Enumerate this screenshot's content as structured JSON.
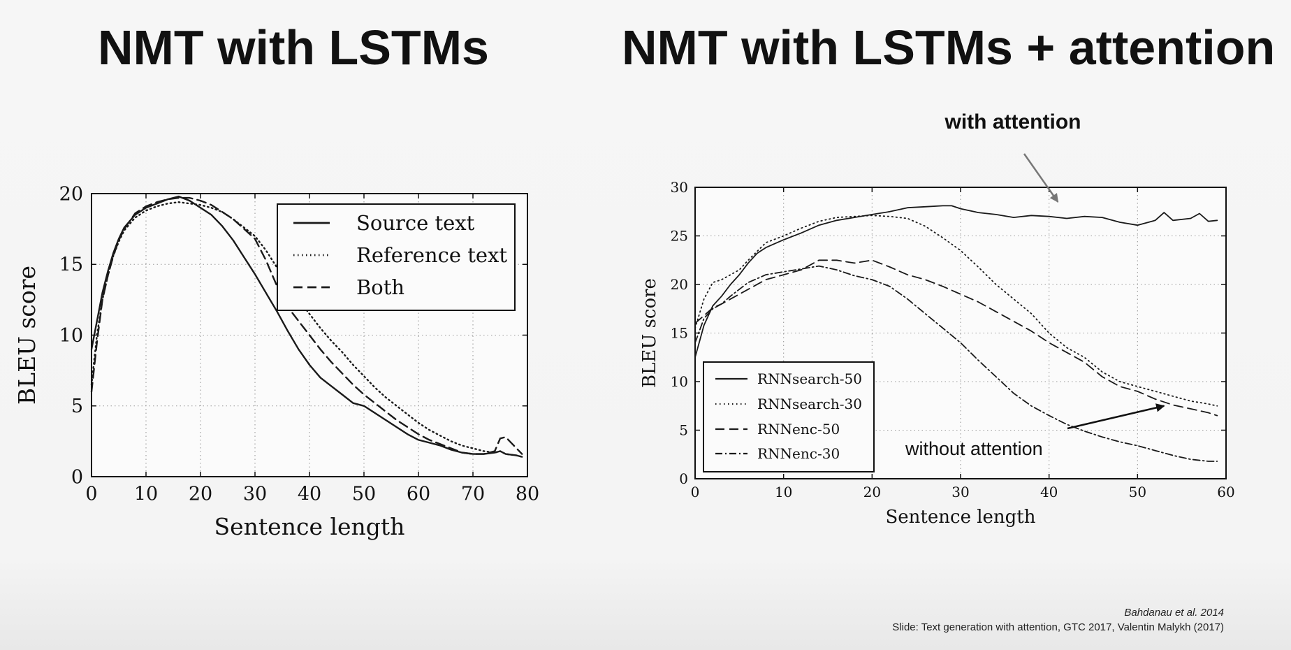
{
  "slide": {
    "title_left": "NMT with LSTMs",
    "title_right": "NMT with LSTMs + attention",
    "citation_author": "Bahdanau et al. 2014",
    "citation_slide": "Slide: Text generation with attention, GTC 2017, Valentin Malykh (2017)"
  },
  "chart_data": [
    {
      "type": "line",
      "xlabel": "Sentence length",
      "ylabel": "BLEU score",
      "xlim": [
        0,
        80
      ],
      "ylim": [
        0,
        20
      ],
      "xticks": [
        0,
        10,
        20,
        30,
        40,
        50,
        60,
        70,
        80
      ],
      "yticks": [
        0,
        5,
        10,
        15,
        20
      ],
      "grid": true,
      "legend_position": "top-right",
      "series": [
        {
          "name": "Source text",
          "style": "solid",
          "color": "#1a1a1a",
          "x": [
            0,
            1,
            2,
            3,
            4,
            5,
            6,
            8,
            10,
            12,
            14,
            16,
            18,
            20,
            22,
            24,
            26,
            28,
            30,
            32,
            34,
            36,
            38,
            40,
            42,
            44,
            46,
            48,
            50,
            52,
            54,
            56,
            58,
            60,
            62,
            64,
            66,
            68,
            70,
            72,
            74,
            75,
            76,
            78,
            79
          ],
          "y": [
            9,
            11,
            13,
            14.5,
            15.8,
            16.8,
            17.6,
            18.5,
            19.0,
            19.3,
            19.6,
            19.8,
            19.5,
            19.0,
            18.5,
            17.7,
            16.7,
            15.5,
            14.3,
            13.0,
            11.7,
            10.3,
            9.0,
            7.9,
            7.0,
            6.4,
            5.8,
            5.2,
            5.0,
            4.5,
            4.0,
            3.5,
            3.0,
            2.6,
            2.4,
            2.2,
            1.9,
            1.7,
            1.6,
            1.6,
            1.7,
            1.8,
            1.6,
            1.5,
            1.4
          ]
        },
        {
          "name": "Reference text",
          "style": "dotted",
          "color": "#1a1a1a",
          "x": [
            0,
            1,
            2,
            3,
            4,
            5,
            6,
            8,
            10,
            12,
            14,
            16,
            18,
            20,
            22,
            24,
            26,
            28,
            30,
            32,
            34,
            36,
            38,
            40,
            42,
            44,
            46,
            48,
            50,
            52,
            54,
            56,
            58,
            60,
            62,
            64,
            66,
            68,
            70,
            72,
            74,
            75,
            76,
            78,
            79
          ],
          "y": [
            6.5,
            10,
            12.5,
            14.2,
            15.6,
            16.6,
            17.4,
            18.3,
            18.8,
            19.1,
            19.3,
            19.4,
            19.3,
            19.2,
            19.0,
            18.7,
            18.2,
            17.6,
            17.0,
            16.0,
            14.8,
            13.6,
            12.5,
            11.5,
            10.5,
            9.6,
            8.8,
            7.9,
            7.1,
            6.3,
            5.6,
            5.0,
            4.4,
            3.8,
            3.3,
            2.9,
            2.5,
            2.2,
            2.0,
            1.8,
            1.7,
            1.8,
            1.6,
            1.5,
            1.4
          ]
        },
        {
          "name": "Both",
          "style": "dashed",
          "color": "#1a1a1a",
          "x": [
            0,
            1,
            2,
            3,
            4,
            5,
            6,
            8,
            10,
            12,
            14,
            16,
            18,
            20,
            22,
            24,
            26,
            28,
            30,
            32,
            34,
            36,
            38,
            40,
            42,
            44,
            46,
            48,
            50,
            52,
            54,
            56,
            58,
            60,
            62,
            64,
            66,
            68,
            70,
            72,
            74,
            75,
            76,
            77,
            78,
            79
          ],
          "y": [
            6.0,
            9.5,
            12.5,
            14.2,
            15.6,
            16.7,
            17.5,
            18.6,
            19.1,
            19.4,
            19.6,
            19.7,
            19.7,
            19.5,
            19.2,
            18.7,
            18.2,
            17.5,
            16.8,
            15.3,
            13.5,
            12.0,
            11.0,
            10.0,
            9.0,
            8.1,
            7.3,
            6.5,
            5.8,
            5.2,
            4.6,
            4.0,
            3.5,
            3.0,
            2.6,
            2.3,
            2.0,
            1.7,
            1.6,
            1.6,
            1.8,
            2.7,
            2.8,
            2.4,
            2.0,
            1.6
          ]
        }
      ]
    },
    {
      "type": "line",
      "xlabel": "Sentence length",
      "ylabel": "BLEU score",
      "xlim": [
        0,
        60
      ],
      "ylim": [
        0,
        30
      ],
      "xticks": [
        0,
        10,
        20,
        30,
        40,
        50,
        60
      ],
      "yticks": [
        0,
        5,
        10,
        15,
        20,
        25,
        30
      ],
      "grid": true,
      "legend_position": "bottom-left",
      "series": [
        {
          "name": "RNNsearch-50",
          "style": "solid",
          "color": "#1a1a1a",
          "x": [
            0,
            1,
            2,
            3,
            4,
            5,
            6,
            7,
            8,
            10,
            12,
            14,
            16,
            18,
            20,
            22,
            24,
            26,
            28,
            29,
            30,
            32,
            34,
            36,
            38,
            40,
            42,
            44,
            46,
            48,
            50,
            52,
            53,
            54,
            56,
            57,
            58,
            59
          ],
          "y": [
            12.5,
            15.8,
            17.8,
            18.8,
            20.0,
            21.0,
            22.2,
            23.2,
            23.8,
            24.6,
            25.3,
            26.1,
            26.6,
            26.9,
            27.2,
            27.5,
            27.9,
            28.0,
            28.1,
            28.1,
            27.8,
            27.4,
            27.2,
            26.9,
            27.1,
            27.0,
            26.8,
            27.0,
            26.9,
            26.4,
            26.1,
            26.6,
            27.4,
            26.6,
            26.8,
            27.3,
            26.5,
            26.6
          ]
        },
        {
          "name": "RNNsearch-30",
          "style": "dotted",
          "color": "#1a1a1a",
          "x": [
            0,
            1,
            2,
            3,
            4,
            5,
            6,
            8,
            10,
            12,
            14,
            16,
            18,
            20,
            22,
            24,
            26,
            28,
            30,
            32,
            34,
            36,
            38,
            40,
            42,
            44,
            46,
            48,
            50,
            52,
            54,
            56,
            58,
            59
          ],
          "y": [
            15.5,
            18.5,
            20.2,
            20.5,
            21.0,
            21.5,
            22.5,
            24.3,
            25.0,
            25.8,
            26.5,
            26.9,
            27.0,
            27.1,
            27.0,
            26.8,
            26.0,
            24.8,
            23.5,
            21.8,
            20.0,
            18.5,
            17.0,
            15.0,
            13.5,
            12.5,
            11.0,
            10.0,
            9.5,
            9.0,
            8.5,
            8.0,
            7.7,
            7.5
          ]
        },
        {
          "name": "RNNenc-50",
          "style": "dashed",
          "color": "#1a1a1a",
          "x": [
            0,
            1,
            2,
            3,
            4,
            5,
            6,
            8,
            10,
            12,
            14,
            16,
            18,
            20,
            22,
            24,
            26,
            28,
            30,
            32,
            34,
            36,
            38,
            40,
            42,
            44,
            46,
            48,
            50,
            52,
            54,
            56,
            58,
            59
          ],
          "y": [
            16.0,
            16.8,
            17.6,
            18.0,
            18.5,
            19.0,
            19.5,
            20.5,
            21.0,
            21.5,
            22.5,
            22.5,
            22.2,
            22.5,
            21.8,
            21.0,
            20.5,
            19.8,
            19.0,
            18.2,
            17.2,
            16.2,
            15.2,
            14.0,
            13.0,
            12.0,
            10.5,
            9.5,
            9.0,
            8.2,
            7.6,
            7.2,
            6.8,
            6.5
          ]
        },
        {
          "name": "RNNenc-30",
          "style": "dashdot",
          "color": "#1a1a1a",
          "x": [
            0,
            1,
            2,
            3,
            4,
            5,
            6,
            8,
            10,
            12,
            14,
            16,
            18,
            20,
            22,
            24,
            26,
            28,
            30,
            32,
            34,
            36,
            38,
            40,
            42,
            44,
            46,
            48,
            50,
            52,
            54,
            56,
            58,
            59
          ],
          "y": [
            14.0,
            16.5,
            17.5,
            18.0,
            18.8,
            19.5,
            20.2,
            21.0,
            21.3,
            21.6,
            21.9,
            21.5,
            20.9,
            20.5,
            19.8,
            18.5,
            17.0,
            15.5,
            14.0,
            12.2,
            10.5,
            8.8,
            7.5,
            6.5,
            5.6,
            4.9,
            4.3,
            3.8,
            3.4,
            2.9,
            2.4,
            2.0,
            1.8,
            1.8
          ]
        }
      ],
      "annotations": [
        {
          "text": "with attention",
          "target": [
            41,
            28.5
          ]
        },
        {
          "text": "without attention",
          "target": [
            53,
            7.5
          ]
        }
      ]
    }
  ]
}
